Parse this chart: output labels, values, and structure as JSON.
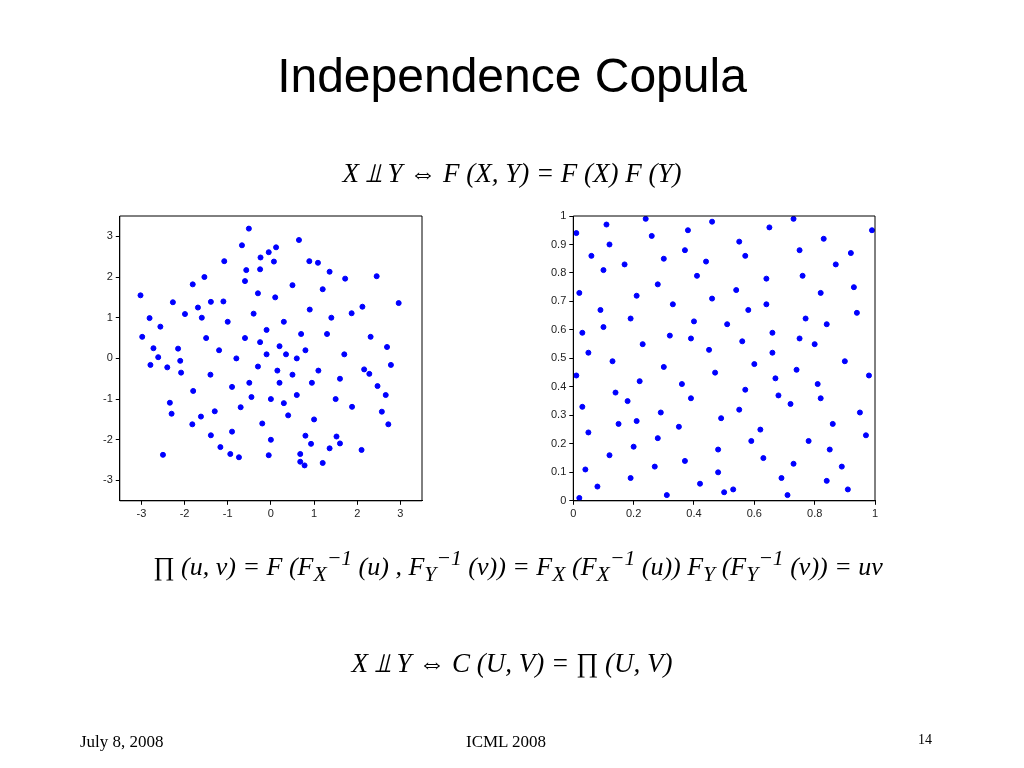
{
  "chart_data": [
    {
      "type": "scatter",
      "title": "Independence Copula",
      "annotations": [
        "X ⫫ Y ⇔ F (X, Y) = F (X) F (Y)",
        "∏ (u, v) = F (F$_{X}$$^{−1}$ (u) , F$_{Y}$$^{−1}$ (v)) = F$_{X}$ (F$_{X}$$^{−1}$ (u)) F$_{Y}$ (F$_{Y}$$^{−1}$ (v)) = uv",
        "X ⫫ Y ⇔ C (U, V) = ∏ (U, V)",
        "July 8, 2008",
        "ICML 2008",
        "14"
      ],
      "xlim": [
        -3.5,
        3.5
      ],
      "ylim": [
        -3.5,
        3.5
      ],
      "xticks": [
        -3,
        -2,
        -1,
        0,
        1,
        2,
        3
      ],
      "yticks": [
        -3,
        -2,
        -1,
        0,
        1,
        2,
        3
      ],
      "grid": false,
      "marker": "circle",
      "series": [
        {
          "color": "#0000ff",
          "x": [
            -3.02,
            -2.98,
            -2.81,
            -2.72,
            -2.79,
            -2.61,
            -2.56,
            -2.4,
            -2.34,
            -2.3,
            -2.5,
            -2.27,
            -1.81,
            -1.54,
            -1.08,
            -0.51,
            -0.67,
            -0.57,
            -0.25,
            -0.24,
            -0.05,
            0.12,
            0.07,
            0.65,
            0.89,
            1.09,
            1.36,
            1.72,
            2.45,
            2.96,
            2.12,
            1.87,
            2.31,
            2.69,
            2.78,
            2.28,
            2.16,
            2.47,
            2.66,
            2.57,
            2.72,
            2.1,
            1.88,
            1.2,
            0.78,
            0.68,
            0.68,
            -0.05,
            -0.74,
            -0.94,
            -1.17,
            -1.39,
            -1.82,
            -1.62,
            0.93,
            1.36,
            1.6,
            1.52,
            -2.08,
            -2.1,
            -2.15,
            -1.99,
            -1.69,
            -1.39,
            -0.1,
            0.2,
            -0.3,
            0.5,
            -0.6,
            0.8,
            -0.9,
            0.3,
            -0.4,
            1.1,
            -1.2,
            0.0,
            0.6,
            -0.7,
            1.3,
            -1.4,
            0.9,
            -1.0,
            0.4,
            -0.2,
            1.5,
            -1.6,
            0.1,
            1.0,
            -0.5,
            0.7,
            -0.8,
            0.2,
            -0.1,
            1.2,
            -1.3,
            0.5,
            -0.3,
            1.7,
            -1.8,
            0.0,
            0.8,
            -0.9,
            1.6,
            -1.5,
            0.35,
            -0.25,
            0.15,
            0.6,
            -0.45,
            0.95,
            -1.1,
            1.4,
            -0.6,
            0.3
          ],
          "values": [
            1.55,
            0.53,
            0.99,
            0.25,
            -0.16,
            0.03,
            0.78,
            -0.22,
            -1.09,
            -1.36,
            -2.37,
            1.38,
            1.82,
            2.0,
            2.39,
            3.19,
            2.78,
            2.17,
            2.19,
            2.48,
            2.61,
            2.73,
            2.38,
            2.91,
            2.39,
            2.35,
            2.13,
            1.96,
            2.02,
            1.36,
            1.27,
            1.11,
            0.53,
            0.28,
            -0.16,
            -0.38,
            -0.27,
            -0.68,
            -0.9,
            -1.31,
            -1.62,
            -2.25,
            -1.19,
            -2.57,
            -2.63,
            -2.54,
            -2.35,
            -2.38,
            -2.43,
            -2.35,
            -2.18,
            -1.89,
            -1.62,
            -1.43,
            -2.1,
            -2.21,
            -2.09,
            -1.92,
            -0.35,
            -0.06,
            0.24,
            1.09,
            1.25,
            1.39,
            0.1,
            0.3,
            -0.2,
            -0.4,
            0.5,
            0.2,
            -0.7,
            0.9,
            1.1,
            -0.3,
            0.2,
            -1.0,
            -0.9,
            -1.2,
            0.6,
            -0.4,
            1.2,
            0.9,
            -1.4,
            -1.6,
            -1.0,
            1.0,
            1.5,
            -1.5,
            -0.6,
            0.6,
            0.0,
            -0.6,
            0.7,
            1.7,
            -1.3,
            1.8,
            1.6,
            0.1,
            -0.8,
            -2.0,
            -1.9,
            -1.8,
            -0.5,
            0.5,
            0.1,
            0.4,
            -0.3,
            0.0,
            -0.95,
            -0.6,
            1.4,
            1.0,
            1.9,
            -1.1
          ]
        }
      ]
    },
    {
      "type": "scatter",
      "xlim": [
        0,
        1
      ],
      "ylim": [
        0,
        1
      ],
      "xticks": [
        0,
        0.2,
        0.4,
        0.6,
        0.8,
        1
      ],
      "yticks": [
        0,
        0.1,
        0.2,
        0.3,
        0.4,
        0.5,
        0.6,
        0.7,
        0.8,
        0.9,
        1
      ],
      "grid": false,
      "marker": "circle",
      "series": [
        {
          "color": "#0000ff",
          "x": [
            0.01,
            0.03,
            0.05,
            0.02,
            0.04,
            0.01,
            0.06,
            0.03,
            0.02,
            0.05,
            0.09,
            0.12,
            0.1,
            0.14,
            0.11,
            0.08,
            0.13,
            0.15,
            0.1,
            0.12,
            0.18,
            0.21,
            0.19,
            0.23,
            0.2,
            0.17,
            0.22,
            0.24,
            0.19,
            0.21,
            0.27,
            0.3,
            0.28,
            0.32,
            0.29,
            0.26,
            0.31,
            0.33,
            0.28,
            0.3,
            0.36,
            0.39,
            0.37,
            0.41,
            0.38,
            0.35,
            0.4,
            0.42,
            0.37,
            0.39,
            0.45,
            0.48,
            0.46,
            0.5,
            0.47,
            0.44,
            0.49,
            0.51,
            0.46,
            0.48,
            0.54,
            0.57,
            0.55,
            0.59,
            0.56,
            0.53,
            0.58,
            0.6,
            0.55,
            0.57,
            0.63,
            0.66,
            0.64,
            0.68,
            0.65,
            0.62,
            0.67,
            0.69,
            0.64,
            0.66,
            0.72,
            0.75,
            0.73,
            0.77,
            0.74,
            0.71,
            0.76,
            0.78,
            0.73,
            0.75,
            0.81,
            0.84,
            0.82,
            0.86,
            0.83,
            0.8,
            0.85,
            0.87,
            0.82,
            0.84,
            0.9,
            0.93,
            0.91,
            0.95,
            0.92,
            0.89,
            0.94,
            0.97,
            0.99,
            0.98
          ],
          "values": [
            0.94,
            0.59,
            0.24,
            0.73,
            0.11,
            0.44,
            0.86,
            0.33,
            0.01,
            0.52,
            0.67,
            0.16,
            0.81,
            0.38,
            0.97,
            0.05,
            0.49,
            0.27,
            0.61,
            0.9,
            0.35,
            0.72,
            0.08,
            0.55,
            0.19,
            0.83,
            0.42,
            0.99,
            0.64,
            0.28,
            0.12,
            0.47,
            0.76,
            0.58,
            0.31,
            0.93,
            0.02,
            0.69,
            0.22,
            0.85,
            0.41,
            0.57,
            0.14,
            0.79,
            0.95,
            0.26,
            0.63,
            0.06,
            0.88,
            0.36,
            0.53,
            0.18,
            0.71,
            0.03,
            0.45,
            0.84,
            0.29,
            0.62,
            0.98,
            0.1,
            0.74,
            0.39,
            0.91,
            0.21,
            0.56,
            0.04,
            0.67,
            0.48,
            0.32,
            0.86,
            0.15,
            0.59,
            0.78,
            0.37,
            0.96,
            0.25,
            0.43,
            0.08,
            0.69,
            0.52,
            0.34,
            0.88,
            0.13,
            0.64,
            0.46,
            0.02,
            0.79,
            0.21,
            0.99,
            0.57,
            0.41,
            0.07,
            0.73,
            0.27,
            0.92,
            0.55,
            0.18,
            0.83,
            0.36,
            0.62,
            0.49,
            0.75,
            0.04,
            0.31,
            0.87,
            0.12,
            0.66,
            0.23,
            0.95,
            0.44
          ]
        }
      ]
    }
  ]
}
